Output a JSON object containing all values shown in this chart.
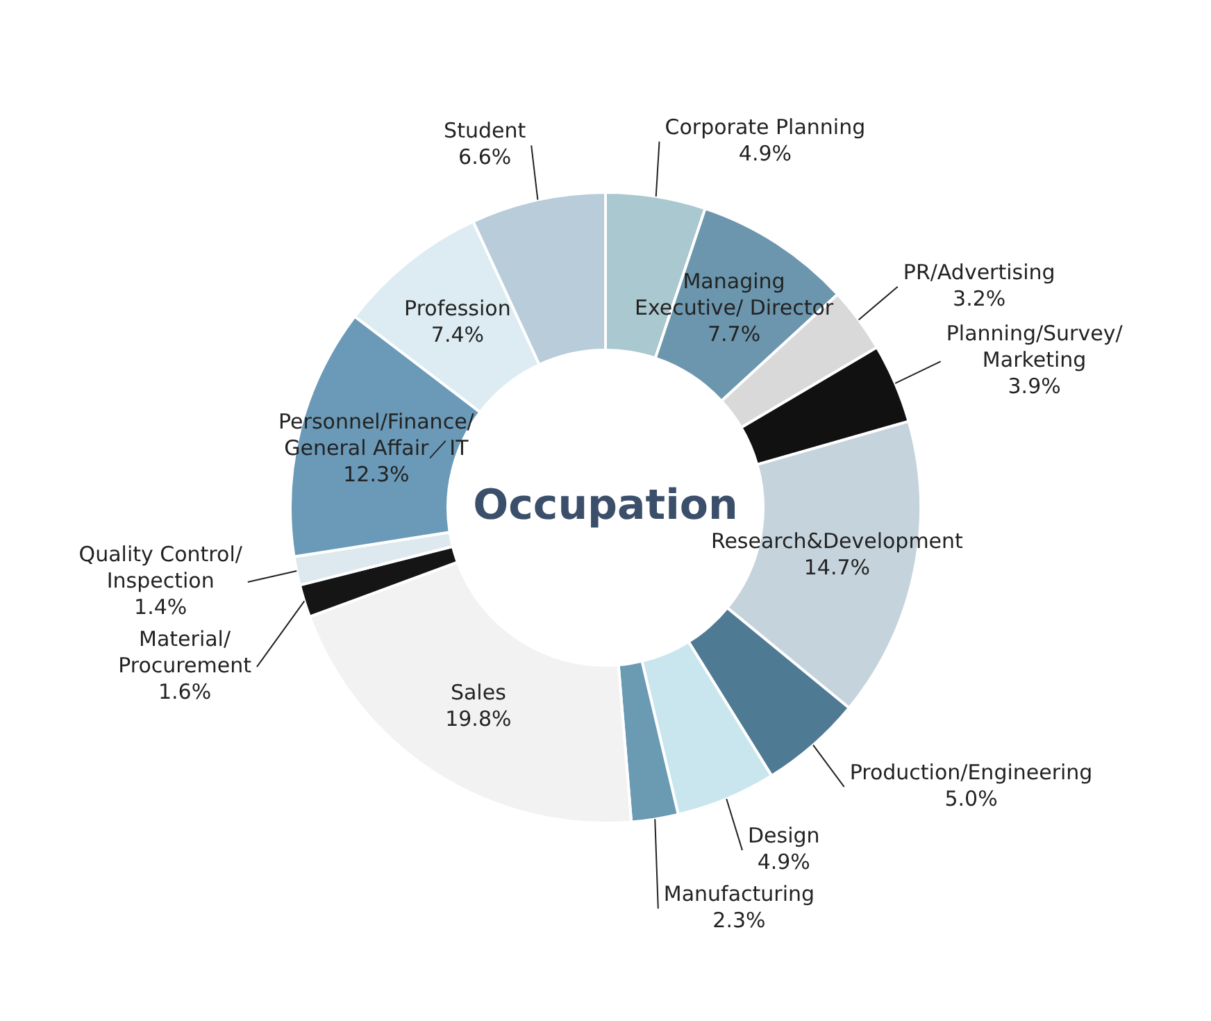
{
  "chart_data": {
    "type": "donut",
    "title": "Occupation",
    "categories": [
      "Corporate Planning",
      "Managing Executive/ Director",
      "PR/Advertising",
      "Planning/Survey/ Marketing",
      "Research&Development",
      "Production/Engineering",
      "Design",
      "Manufacturing",
      "Sales",
      "Material/ Procurement",
      "Quality Control/ Inspection",
      "Personnel/Finance/ General Affair／IT",
      "Profession",
      "Student"
    ],
    "values": [
      4.9,
      7.7,
      3.2,
      3.9,
      14.7,
      5.0,
      4.9,
      2.3,
      19.8,
      1.6,
      1.4,
      12.3,
      7.4,
      6.6
    ],
    "value_labels": [
      "4.9%",
      "7.7%",
      "3.2%",
      "3.9%",
      "14.7%",
      "5.0%",
      "4.9%",
      "2.3%",
      "19.8%",
      "1.6%",
      "1.4%",
      "12.3%",
      "7.4%",
      "6.6%"
    ],
    "colors": [
      "#a9c8cf",
      "#6b96ad",
      "#d9d9d9",
      "#111111",
      "#c5d3dc",
      "#4f7a93",
      "#c9e6ee",
      "#6b9ab3",
      "#f2f2f2",
      "#151515",
      "#dde9ee",
      "#6b9ab8",
      "#dcecf2",
      "#b8ccd9"
    ],
    "legend": false
  }
}
